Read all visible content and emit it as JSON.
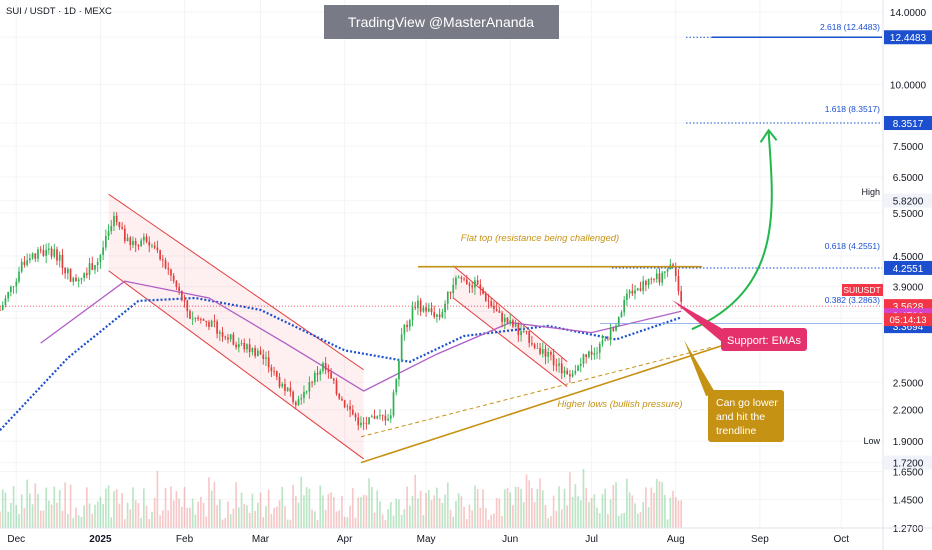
{
  "header": {
    "symbol_title": "SUI / USDT · 1D · MEXC"
  },
  "watermark": {
    "text": "TradingView @MasterAnanda"
  },
  "chart_data": {
    "type": "candlestick",
    "scale": "log",
    "ylim": [
      1.2,
      14.0
    ],
    "y_ticks": [
      "14.0000",
      "12.4483",
      "10.0000",
      "8.3517",
      "7.5000",
      "6.5000",
      "5.8200",
      "5.5000",
      "4.5000",
      "4.2551",
      "3.9000",
      "3.5628",
      "3.4786",
      "3.3694",
      "2.5000",
      "2.2000",
      "1.9000",
      "1.7200",
      "1.6500",
      "1.4500",
      "1.2700"
    ],
    "y_tick_values": [
      14.0,
      12.4483,
      10.0,
      8.3517,
      7.5,
      6.5,
      5.82,
      5.5,
      4.5,
      4.2551,
      3.9,
      3.5628,
      3.4786,
      3.3694,
      2.5,
      2.2,
      1.9,
      1.72,
      1.65,
      1.45,
      1.27
    ],
    "x_ticks": [
      "Dec",
      "2025",
      "Feb",
      "Mar",
      "Apr",
      "May",
      "Jun",
      "Jul",
      "Aug",
      "Sep",
      "Oct"
    ],
    "x_tick_dates": [
      "2024-12-01",
      "2025-01-01",
      "2025-02-01",
      "2025-03-01",
      "2025-04-01",
      "2025-05-01",
      "2025-06-01",
      "2025-07-01",
      "2025-08-01",
      "2025-09-01",
      "2025-10-01"
    ],
    "x_range": [
      "2024-11-25",
      "2025-10-16"
    ],
    "price_path": [
      [
        "2024-11-25",
        3.5
      ],
      [
        "2024-12-05",
        4.5
      ],
      [
        "2024-12-15",
        4.6
      ],
      [
        "2024-12-22",
        4.0
      ],
      [
        "2024-12-31",
        4.4
      ],
      [
        "2025-01-06",
        5.3
      ],
      [
        "2025-01-12",
        4.7
      ],
      [
        "2025-01-18",
        4.9
      ],
      [
        "2025-01-26",
        4.2
      ],
      [
        "2025-02-03",
        3.4
      ],
      [
        "2025-02-10",
        3.3
      ],
      [
        "2025-02-20",
        3.0
      ],
      [
        "2025-03-01",
        2.85
      ],
      [
        "2025-03-08",
        2.5
      ],
      [
        "2025-03-14",
        2.3
      ],
      [
        "2025-03-24",
        2.7
      ],
      [
        "2025-03-31",
        2.3
      ],
      [
        "2025-04-07",
        2.05
      ],
      [
        "2025-04-18",
        2.15
      ],
      [
        "2025-04-22",
        3.1
      ],
      [
        "2025-04-27",
        3.6
      ],
      [
        "2025-05-06",
        3.4
      ],
      [
        "2025-05-12",
        4.1
      ],
      [
        "2025-05-20",
        3.9
      ],
      [
        "2025-05-28",
        3.4
      ],
      [
        "2025-06-07",
        3.1
      ],
      [
        "2025-06-17",
        2.75
      ],
      [
        "2025-06-22",
        2.6
      ],
      [
        "2025-06-30",
        2.85
      ],
      [
        "2025-07-06",
        3.0
      ],
      [
        "2025-07-14",
        3.7
      ],
      [
        "2025-07-21",
        4.0
      ],
      [
        "2025-07-28",
        4.1
      ],
      [
        "2025-07-31",
        4.35
      ],
      [
        "2025-08-03",
        3.56
      ]
    ],
    "series": [],
    "ema_series": [
      {
        "values": [
          [
            "2024-11-25",
            2.0
          ],
          [
            "2024-12-20",
            2.8
          ],
          [
            "2025-01-15",
            3.65
          ],
          [
            "2025-02-05",
            3.7
          ],
          [
            "2025-03-01",
            3.5
          ],
          [
            "2025-04-01",
            2.9
          ],
          [
            "2025-04-25",
            2.75
          ],
          [
            "2025-05-15",
            3.1
          ],
          [
            "2025-06-15",
            3.25
          ],
          [
            "2025-07-10",
            3.05
          ],
          [
            "2025-08-03",
            3.38
          ]
        ],
        "color": "#1b4fcf"
      },
      {
        "values": [
          [
            "2024-12-10",
            3.0
          ],
          [
            "2025-01-10",
            4.0
          ],
          [
            "2025-02-10",
            3.7
          ],
          [
            "2025-03-10",
            3.0
          ],
          [
            "2025-04-08",
            2.4
          ],
          [
            "2025-05-05",
            2.85
          ],
          [
            "2025-06-01",
            3.3
          ],
          [
            "2025-07-01",
            3.15
          ],
          [
            "2025-08-03",
            3.48
          ]
        ],
        "color": "#b05ec4"
      }
    ],
    "annotations": {
      "flat_top": "Flat top (resistance being challenged)",
      "higher_lows": "Higher lows (bullish pressure)",
      "support_emas": "Support: EMAs",
      "go_lower": [
        "Can go lower",
        "and hit the",
        "trendline"
      ],
      "fib_2618": "2.618 (12.4483)",
      "fib_1618": "1.618 (8.3517)",
      "fib_0618": "0.618 (4.2551)",
      "fib_0382": "0.382 (3.2863)",
      "high_label": "High",
      "low_label": "Low",
      "symbol_tag": "SUIUSDT",
      "countdown": "05:14:13"
    },
    "levels": {
      "fib_2618": 12.4483,
      "fib_1618": 8.3517,
      "fib_0618": 4.2551,
      "fib_0382": 3.2863,
      "flat_top": 4.28,
      "last_price": 3.5628,
      "ema_fast": 3.4786,
      "ema_slow": 3.3694
    },
    "trendline": [
      [
        "2025-04-07",
        1.72
      ],
      [
        "2025-08-31",
        3.15
      ]
    ],
    "trendline_dashed": [
      [
        "2025-04-07",
        1.94
      ],
      [
        "2025-08-15",
        2.95
      ]
    ],
    "channels": [
      {
        "upper": [
          [
            "2025-01-04",
            6.0
          ],
          [
            "2025-04-08",
            2.65
          ]
        ],
        "lower": [
          [
            "2025-01-04",
            4.2
          ],
          [
            "2025-04-08",
            1.75
          ]
        ]
      },
      {
        "upper": [
          [
            "2025-05-11",
            4.3
          ],
          [
            "2025-06-22",
            2.75
          ]
        ],
        "lower": [
          [
            "2025-05-11",
            3.7
          ],
          [
            "2025-06-22",
            2.45
          ]
        ]
      }
    ],
    "arrow_target": [
      "2025-09-02",
      8.0
    ],
    "arrow_start": [
      "2025-08-04",
      3.2
    ],
    "colors": {
      "up": "#2bb14f",
      "down": "#e23b3b",
      "blue_label": "#1b4fcf",
      "red_label": "#f23645",
      "purple_label": "#d443c9",
      "gold": "#c69214",
      "pink": "#e5316b",
      "green_arrow": "#21b84b"
    }
  }
}
